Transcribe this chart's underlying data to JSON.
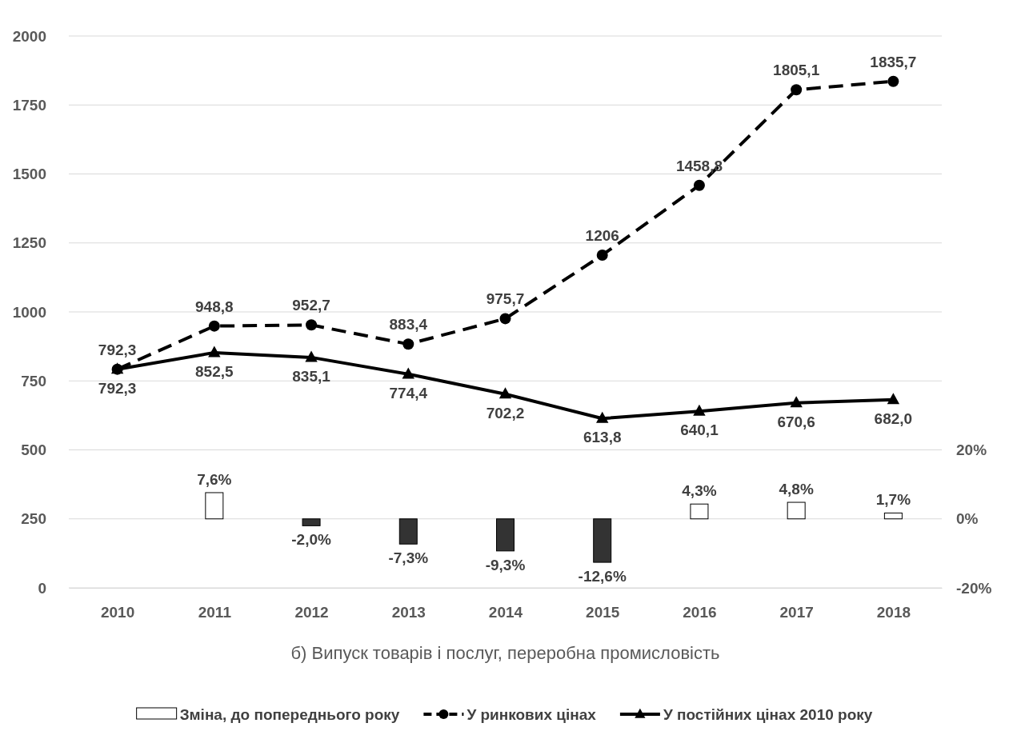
{
  "chart_data": {
    "type": "line",
    "title": "б) Випуск товарів і послуг, переробна промисловість",
    "categories": [
      "2010",
      "2011",
      "2012",
      "2013",
      "2014",
      "2015",
      "2016",
      "2017",
      "2018"
    ],
    "ylim": [
      0,
      2000
    ],
    "yticks": [
      0,
      250,
      500,
      750,
      1000,
      1250,
      1500,
      1750,
      2000
    ],
    "y2lim": [
      -20,
      140
    ],
    "y2ticks": [
      {
        "value": -20,
        "label": "-20%"
      },
      {
        "value": 0,
        "label": "0%"
      },
      {
        "value": 20,
        "label": "20%"
      }
    ],
    "grid": "y",
    "legend": "bottom",
    "series": [
      {
        "name": "Зміна, до попереднього року",
        "type": "bar",
        "axis": "y2",
        "colors": [
          null,
          "#ffffff",
          "#333333",
          "#333333",
          "#333333",
          "#333333",
          "#ffffff",
          "#ffffff",
          "#ffffff"
        ],
        "values": [
          null,
          7.6,
          -2.0,
          -7.3,
          -9.3,
          -12.6,
          4.3,
          4.8,
          1.7
        ],
        "value_labels": [
          null,
          "7,6%",
          "-2,0%",
          "-7,3%",
          "-9,3%",
          "-12,6%",
          "4,3%",
          "4,8%",
          "1,7%"
        ]
      },
      {
        "name": "У ринкових цінах",
        "color": "#000000",
        "marker": "circle",
        "line_style": "dashed",
        "values": [
          792.3,
          948.8,
          952.7,
          883.4,
          975.7,
          1206,
          1458.8,
          1805.1,
          1835.7
        ],
        "value_labels": [
          "792,3",
          "948,8",
          "952,7",
          "883,4",
          "975,7",
          "1206",
          "1458,8",
          "1805,1",
          "1835,7"
        ]
      },
      {
        "name": "У постійних цінах 2010 року",
        "color": "#000000",
        "marker": "triangle",
        "line_style": "solid",
        "values": [
          792.3,
          852.5,
          835.1,
          774.4,
          702.2,
          613.8,
          640.1,
          670.6,
          682.0
        ],
        "value_labels": [
          "792,3",
          "852,5",
          "835,1",
          "774,4",
          "702,2",
          "613,8",
          "640,1",
          "670,6",
          "682,0"
        ]
      }
    ]
  }
}
